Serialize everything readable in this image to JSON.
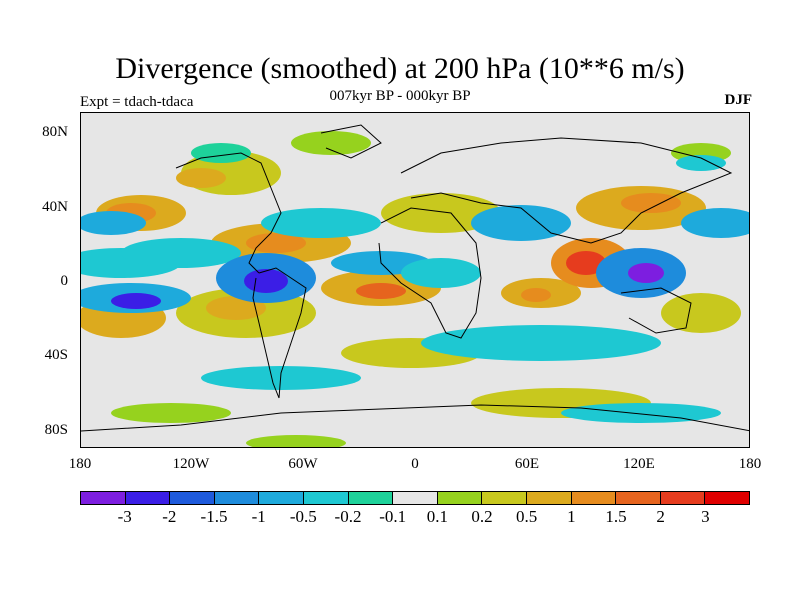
{
  "title": "Divergence (smoothed) at 200 hPa (10**6 m/s)",
  "subtitle": "007kyr BP - 000kyr BP",
  "expt": "Expt = tdach-tdaca",
  "season": "DJF",
  "lat_labels": [
    "80N",
    "40N",
    "0",
    "40S",
    "80S"
  ],
  "lon_labels": [
    "180",
    "120W",
    "60W",
    "0",
    "60E",
    "120E",
    "180"
  ],
  "colorbar": {
    "colors": [
      "#7d1ee0",
      "#3b1ee6",
      "#1e5adc",
      "#1e8cdc",
      "#1eaadc",
      "#1ec8d2",
      "#1ed29a",
      "#e6e6e6",
      "#96d21e",
      "#c8c81e",
      "#dcaa1e",
      "#e68c1e",
      "#e6641e",
      "#e63c1e",
      "#e00000"
    ],
    "labels": [
      "-3",
      "-2",
      "-1.5",
      "-1",
      "-0.5",
      "-0.2",
      "-0.1",
      "0.1",
      "0.2",
      "0.5",
      "1",
      "1.5",
      "2",
      "3"
    ]
  },
  "map": {
    "type": "filled-contour",
    "variable": "200 hPa divergence difference",
    "lat_range": [
      -90,
      90
    ],
    "lon_range": [
      -180,
      180
    ]
  }
}
